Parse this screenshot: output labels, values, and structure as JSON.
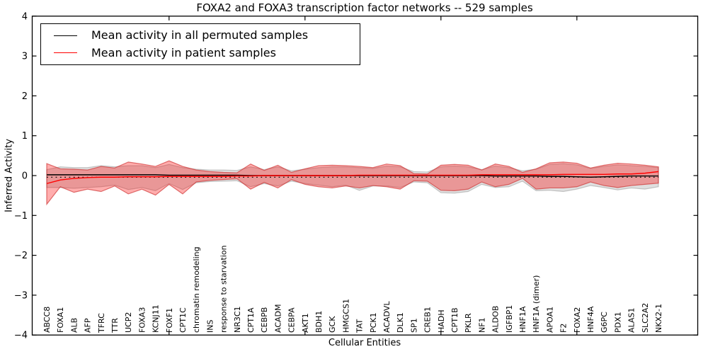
{
  "title": "FOXA2 and FOXA3 transcription factor networks -- 529 samples",
  "axes": {
    "ylabel": "Inferred Activity",
    "xlabel": "Cellular Entities",
    "ytick_labels": [
      "4",
      "3",
      "2",
      "1",
      "0",
      "−1",
      "−2",
      "−3",
      "−4"
    ]
  },
  "legend": {
    "items": [
      {
        "label": "Mean activity in all permuted samples",
        "color": "#000000"
      },
      {
        "label": "Mean activity in patient samples",
        "color": "#ff0000"
      }
    ]
  },
  "colors": {
    "permuted_line": "#000000",
    "patient_line": "#ff0000",
    "patient_band_fill": "rgba(255,0,0,0.32)",
    "patient_band_edge": "rgba(205,45,45,0.65)",
    "permuted_band_fill": "rgba(128,128,128,0.25)",
    "permuted_band_edge": "rgba(128,128,128,0.40)"
  },
  "chart_data": {
    "type": "line",
    "title": "FOXA2 and FOXA3 transcription factor networks -- 529 samples",
    "xlabel": "Cellular Entities",
    "ylabel": "Inferred Activity",
    "ylim": [
      -4,
      4
    ],
    "grid": false,
    "legend_position": "upper left",
    "categories": [
      "ABCC8",
      "FOXA1",
      "ALB",
      "AFP",
      "TFRC",
      "TTR",
      "UCP2",
      "FOXA3",
      "KCNJ11",
      "FOXF1",
      "CPT1C",
      "chromatin remodeling",
      "INS",
      "response to starvation",
      "NR3C1",
      "CPT1A",
      "CEBPB",
      "ACADM",
      "CEBPA",
      "AKT1",
      "BDH1",
      "GCK",
      "HMGCS1",
      "TAT",
      "PCK1",
      "ACADVL",
      "DLK1",
      "SP1",
      "CREB1",
      "HADH",
      "CPT1B",
      "PKLR",
      "NF1",
      "ALDOB",
      "IGFBP1",
      "HNF1A",
      "HNF1A (dimer)",
      "APOA1",
      "F2",
      "FOXA2",
      "HNF4A",
      "G6PC",
      "PDX1",
      "ALAS1",
      "SLC2A2",
      "NKX2-1"
    ],
    "series": [
      {
        "id": "permuted-mean",
        "name": "Mean activity in all permuted samples",
        "color": "#000000",
        "values": [
          0.02,
          0.02,
          0.02,
          0.02,
          0.02,
          0.02,
          0.02,
          0.02,
          0.02,
          0.01,
          0.01,
          0.01,
          0.01,
          0.01,
          0.01,
          0.0,
          0.0,
          0.0,
          0.0,
          0.0,
          0.0,
          0.0,
          0.0,
          0.0,
          0.0,
          0.0,
          0.0,
          0.0,
          0.0,
          0.0,
          0.0,
          0.0,
          0.0,
          -0.01,
          -0.01,
          -0.01,
          -0.01,
          -0.02,
          -0.02,
          -0.03,
          -0.04,
          -0.03,
          -0.02,
          -0.01,
          -0.01,
          -0.01
        ]
      },
      {
        "id": "patient-mean",
        "name": "Mean activity in patient samples",
        "color": "#ff0000",
        "values": [
          -0.2,
          -0.11,
          -0.07,
          -0.05,
          -0.04,
          -0.04,
          -0.03,
          -0.03,
          -0.03,
          -0.02,
          -0.02,
          -0.02,
          -0.02,
          -0.02,
          -0.01,
          -0.01,
          0.0,
          0.0,
          0.0,
          0.0,
          0.0,
          0.0,
          0.0,
          0.01,
          0.01,
          0.01,
          0.01,
          0.01,
          0.01,
          0.01,
          0.01,
          0.01,
          0.02,
          0.02,
          0.02,
          0.02,
          0.02,
          0.02,
          0.03,
          0.03,
          0.03,
          0.03,
          0.04,
          0.04,
          0.06,
          0.1
        ]
      }
    ],
    "bands": [
      {
        "id": "permuted-std",
        "name": "Permuted samples activity spread",
        "fill": "rgba(128,128,128,0.25)",
        "stroke": "rgba(128,128,128,0.40)",
        "upper": [
          0.15,
          0.22,
          0.2,
          0.2,
          0.25,
          0.22,
          0.25,
          0.25,
          0.2,
          0.28,
          0.2,
          0.16,
          0.14,
          0.14,
          0.13,
          0.22,
          0.15,
          0.22,
          0.12,
          0.16,
          0.2,
          0.22,
          0.22,
          0.2,
          0.18,
          0.24,
          0.22,
          0.1,
          0.09,
          0.22,
          0.24,
          0.22,
          0.15,
          0.24,
          0.2,
          0.12,
          0.16,
          0.28,
          0.3,
          0.27,
          0.18,
          0.23,
          0.27,
          0.25,
          0.23,
          0.2
        ],
        "lower": [
          -0.3,
          -0.3,
          -0.32,
          -0.3,
          -0.28,
          -0.24,
          -0.35,
          -0.3,
          -0.38,
          -0.2,
          -0.35,
          -0.18,
          -0.15,
          -0.14,
          -0.13,
          -0.28,
          -0.2,
          -0.26,
          -0.14,
          -0.2,
          -0.24,
          -0.28,
          -0.24,
          -0.37,
          -0.26,
          -0.26,
          -0.3,
          -0.16,
          -0.18,
          -0.43,
          -0.44,
          -0.4,
          -0.22,
          -0.3,
          -0.28,
          -0.14,
          -0.38,
          -0.37,
          -0.4,
          -0.34,
          -0.25,
          -0.3,
          -0.36,
          -0.31,
          -0.34,
          -0.28
        ]
      },
      {
        "id": "patient-std",
        "name": "Patient samples activity spread",
        "fill": "rgba(255,0,0,0.32)",
        "stroke": "rgba(205,45,45,0.65)",
        "upper": [
          0.3,
          0.17,
          0.16,
          0.14,
          0.23,
          0.19,
          0.34,
          0.29,
          0.23,
          0.37,
          0.23,
          0.14,
          0.1,
          0.08,
          0.07,
          0.29,
          0.13,
          0.26,
          0.08,
          0.17,
          0.25,
          0.26,
          0.25,
          0.23,
          0.2,
          0.29,
          0.25,
          0.05,
          0.04,
          0.26,
          0.28,
          0.26,
          0.14,
          0.29,
          0.23,
          0.08,
          0.17,
          0.32,
          0.34,
          0.31,
          0.19,
          0.26,
          0.31,
          0.29,
          0.26,
          0.22
        ],
        "lower": [
          -0.72,
          -0.28,
          -0.42,
          -0.34,
          -0.4,
          -0.26,
          -0.46,
          -0.34,
          -0.49,
          -0.22,
          -0.46,
          -0.16,
          -0.12,
          -0.1,
          -0.08,
          -0.34,
          -0.17,
          -0.31,
          -0.1,
          -0.22,
          -0.28,
          -0.31,
          -0.26,
          -0.31,
          -0.25,
          -0.28,
          -0.34,
          -0.13,
          -0.14,
          -0.37,
          -0.38,
          -0.34,
          -0.16,
          -0.28,
          -0.22,
          -0.07,
          -0.34,
          -0.31,
          -0.31,
          -0.28,
          -0.16,
          -0.25,
          -0.3,
          -0.25,
          -0.22,
          -0.19
        ]
      }
    ]
  }
}
